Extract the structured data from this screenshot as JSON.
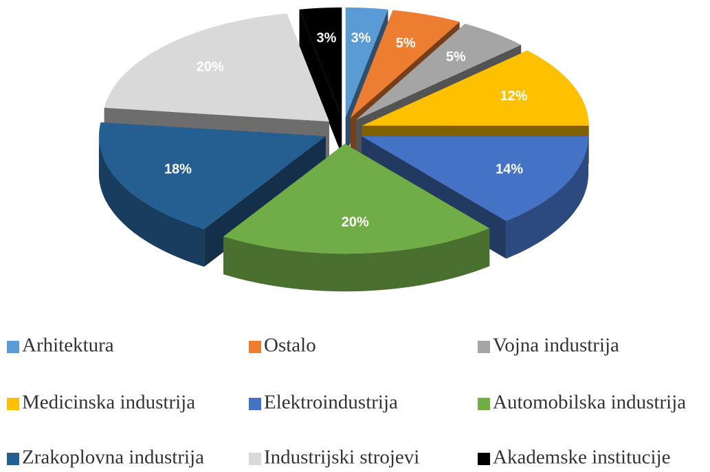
{
  "chart_data": {
    "type": "pie",
    "categories": [
      "Arhitektura",
      "Ostalo",
      "Vojna industrija",
      "Medicinska industrija",
      "Elektroindustrija",
      "Automobilska industrija",
      "Zrakoplovna industrija",
      "Industrijski strojevi",
      "Akademske institucije"
    ],
    "values": [
      3,
      5,
      5,
      12,
      14,
      20,
      18,
      20,
      3
    ],
    "value_labels": [
      "3%",
      "5%",
      "5%",
      "12%",
      "14%",
      "20%",
      "18%",
      "20%",
      "3%"
    ],
    "colors": [
      "#5b9bd5",
      "#ed7d31",
      "#a5a5a5",
      "#ffc000",
      "#4472c4",
      "#70ad47",
      "#255e91",
      "#d9d9d9",
      "#000000"
    ]
  }
}
